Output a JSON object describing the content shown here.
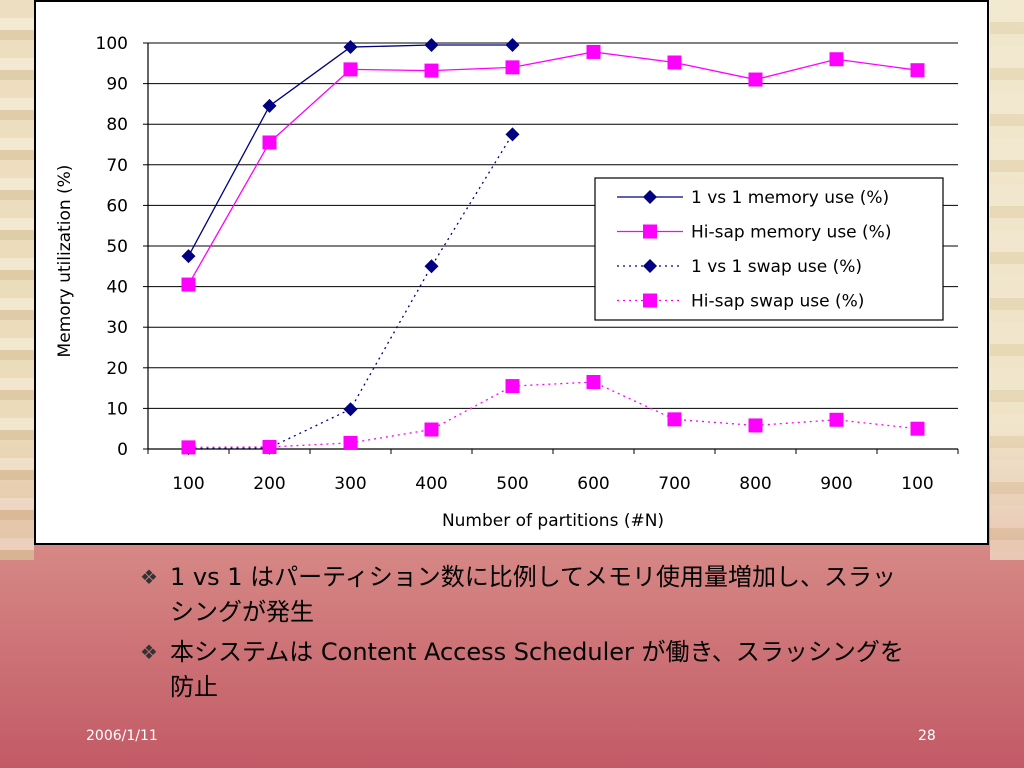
{
  "slide": {
    "bullets": [
      "1 vs 1 はパーティション数に比例してメモリ使用量増加し、スラッシングが発生",
      "本システムは Content Access Scheduler が働き、スラッシングを防止"
    ],
    "bullet_icon": "diamond-cluster-icon",
    "date": "2006/1/11",
    "page_number": "28"
  },
  "chart_data": {
    "type": "line",
    "title": "",
    "xlabel": "Number of partitions (#N)",
    "ylabel": "Memory utilization (%)",
    "categories": [
      "100",
      "200",
      "300",
      "400",
      "500",
      "600",
      "700",
      "800",
      "900",
      "100"
    ],
    "ylim": [
      0,
      100
    ],
    "yticks": [
      0,
      10,
      20,
      30,
      40,
      50,
      60,
      70,
      80,
      90,
      100
    ],
    "grid": "horizontal",
    "legend_position": "right-middle",
    "series": [
      {
        "name": "1 vs 1 memory use (%)",
        "color": "#000080",
        "marker": "diamond",
        "dash": "solid",
        "values": [
          47.5,
          84.5,
          99,
          99.5,
          99.5,
          null,
          null,
          null,
          null,
          null
        ]
      },
      {
        "name": "Hi-sap memory use (%)",
        "color": "#ff00ff",
        "marker": "square",
        "dash": "solid",
        "values": [
          40.5,
          75.5,
          93.5,
          93.2,
          94,
          97.8,
          95.2,
          91,
          96,
          93.3
        ]
      },
      {
        "name": "1 vs 1 swap use (%)",
        "color": "#000080",
        "marker": "diamond",
        "dash": "dotted",
        "values": [
          0.2,
          0.3,
          9.8,
          45,
          77.5,
          null,
          null,
          null,
          null,
          null
        ]
      },
      {
        "name": "Hi-sap swap use (%)",
        "color": "#ff00ff",
        "marker": "square",
        "dash": "dotted",
        "values": [
          0.4,
          0.5,
          1.5,
          4.8,
          15.5,
          16.5,
          7.3,
          5.8,
          7.2,
          5
        ]
      }
    ]
  }
}
